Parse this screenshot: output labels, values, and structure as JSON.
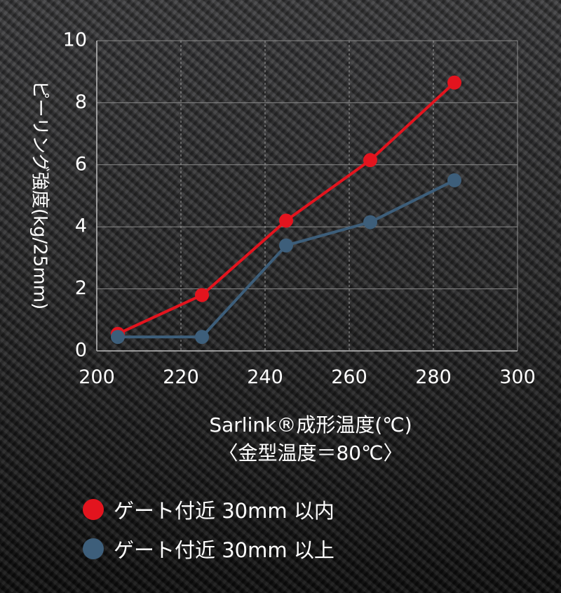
{
  "chart_data": {
    "type": "line",
    "xlabel_line1": "Sarlink®成形温度(℃)",
    "xlabel_line2": "〈金型温度＝80℃〉",
    "ylabel": "ピーリング強度(kg/25mm)",
    "xlim": [
      200,
      300
    ],
    "ylim": [
      0,
      10
    ],
    "xticks": [
      "200",
      "220",
      "240",
      "260",
      "280",
      "300"
    ],
    "yticks": [
      "0",
      "2",
      "4",
      "6",
      "8",
      "10"
    ],
    "grid": true,
    "legend_position": "bottom",
    "series": [
      {
        "name": "ゲート付近 30mm 以内",
        "color": "#e3141e",
        "x": [
          205,
          225,
          245,
          265,
          285
        ],
        "y": [
          0.55,
          1.8,
          4.2,
          6.15,
          8.65
        ]
      },
      {
        "name": "ゲート付近 30mm 以上",
        "color": "#3d5e7a",
        "x": [
          205,
          225,
          245,
          265,
          285
        ],
        "y": [
          0.45,
          0.45,
          3.4,
          4.15,
          5.5
        ]
      }
    ]
  }
}
